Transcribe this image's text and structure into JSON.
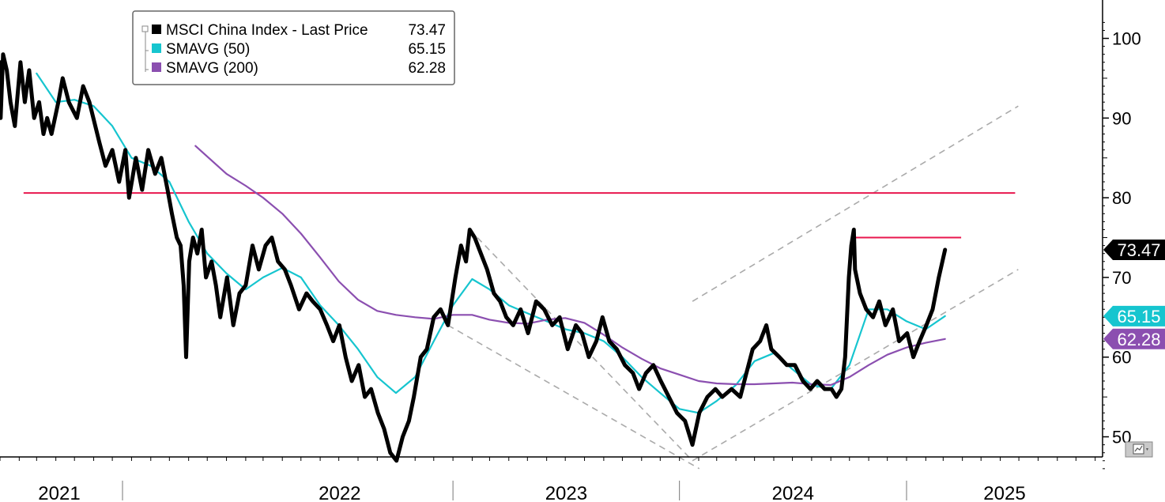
{
  "chart_data": {
    "type": "line",
    "x_unit": "date",
    "y_range": [
      45,
      102
    ],
    "y_ticks": [
      50,
      60,
      70,
      80,
      90,
      100
    ],
    "x_year_labels": [
      "2021",
      "2022",
      "2023",
      "2024",
      "2025"
    ],
    "grid": false,
    "legend_position": "top-left",
    "series": [
      {
        "name": "MSCI China Index - Last Price",
        "legend_value": "73.47",
        "tag": "73.47",
        "color": "#000000",
        "points": [
          [
            "2021-01-01",
            97
          ],
          [
            "2021-01-02",
            90
          ],
          [
            "2021-01-06",
            98
          ],
          [
            "2021-01-12",
            96
          ],
          [
            "2021-01-18",
            92
          ],
          [
            "2021-01-25",
            89
          ],
          [
            "2021-02-03",
            97
          ],
          [
            "2021-02-10",
            92
          ],
          [
            "2021-02-17",
            96
          ],
          [
            "2021-02-25",
            90
          ],
          [
            "2021-03-05",
            92
          ],
          [
            "2021-03-12",
            88
          ],
          [
            "2021-03-18",
            90
          ],
          [
            "2021-03-25",
            88
          ],
          [
            "2021-04-05",
            92
          ],
          [
            "2021-04-12",
            95
          ],
          [
            "2021-04-22",
            92
          ],
          [
            "2021-05-05",
            90
          ],
          [
            "2021-05-15",
            94
          ],
          [
            "2021-05-25",
            92
          ],
          [
            "2021-06-10",
            87
          ],
          [
            "2021-06-20",
            84
          ],
          [
            "2021-07-01",
            86
          ],
          [
            "2021-07-12",
            82
          ],
          [
            "2021-07-22",
            86
          ],
          [
            "2021-07-28",
            80
          ],
          [
            "2021-08-08",
            85
          ],
          [
            "2021-08-18",
            81
          ],
          [
            "2021-08-28",
            86
          ],
          [
            "2021-09-08",
            83
          ],
          [
            "2021-09-18",
            85
          ],
          [
            "2021-09-28",
            81
          ],
          [
            "2021-10-05",
            78
          ],
          [
            "2021-10-13",
            75
          ],
          [
            "2021-10-19",
            74
          ],
          [
            "2021-10-24",
            69
          ],
          [
            "2021-10-28",
            60
          ],
          [
            "2021-11-02",
            72
          ],
          [
            "2021-11-08",
            75
          ],
          [
            "2021-11-15",
            73
          ],
          [
            "2021-11-22",
            76
          ],
          [
            "2021-11-29",
            70
          ],
          [
            "2021-12-08",
            72
          ],
          [
            "2021-12-15",
            69
          ],
          [
            "2021-12-22",
            65
          ],
          [
            "2022-01-02",
            70
          ],
          [
            "2022-01-12",
            64
          ],
          [
            "2022-01-22",
            68
          ],
          [
            "2022-02-01",
            69
          ],
          [
            "2022-02-12",
            74
          ],
          [
            "2022-02-22",
            71
          ],
          [
            "2022-03-05",
            74
          ],
          [
            "2022-03-15",
            75
          ],
          [
            "2022-03-25",
            72
          ],
          [
            "2022-04-05",
            71
          ],
          [
            "2022-04-15",
            69
          ],
          [
            "2022-04-28",
            66
          ],
          [
            "2022-05-10",
            68
          ],
          [
            "2022-05-20",
            67
          ],
          [
            "2022-06-01",
            66
          ],
          [
            "2022-06-12",
            64
          ],
          [
            "2022-06-22",
            62
          ],
          [
            "2022-07-02",
            64
          ],
          [
            "2022-07-12",
            60
          ],
          [
            "2022-07-22",
            57
          ],
          [
            "2022-08-02",
            59
          ],
          [
            "2022-08-12",
            55
          ],
          [
            "2022-08-22",
            56
          ],
          [
            "2022-09-02",
            53
          ],
          [
            "2022-09-12",
            51
          ],
          [
            "2022-09-22",
            48
          ],
          [
            "2022-10-02",
            47
          ],
          [
            "2022-10-12",
            50
          ],
          [
            "2022-10-22",
            52
          ],
          [
            "2022-10-30",
            55
          ],
          [
            "2022-11-10",
            60
          ],
          [
            "2022-11-20",
            61
          ],
          [
            "2022-12-01",
            65
          ],
          [
            "2022-12-12",
            66
          ],
          [
            "2022-12-24",
            64
          ],
          [
            "2023-01-05",
            70
          ],
          [
            "2023-01-14",
            74
          ],
          [
            "2023-01-22",
            72
          ],
          [
            "2023-01-28",
            76
          ],
          [
            "2023-02-05",
            75
          ],
          [
            "2023-02-15",
            73
          ],
          [
            "2023-02-25",
            71
          ],
          [
            "2023-03-08",
            68
          ],
          [
            "2023-03-18",
            67
          ],
          [
            "2023-03-28",
            65
          ],
          [
            "2023-04-08",
            64
          ],
          [
            "2023-04-20",
            66
          ],
          [
            "2023-05-02",
            63
          ],
          [
            "2023-05-15",
            67
          ],
          [
            "2023-05-28",
            66
          ],
          [
            "2023-06-10",
            64
          ],
          [
            "2023-06-22",
            65
          ],
          [
            "2023-07-05",
            61
          ],
          [
            "2023-07-18",
            64
          ],
          [
            "2023-07-28",
            63
          ],
          [
            "2023-08-08",
            60
          ],
          [
            "2023-08-20",
            62
          ],
          [
            "2023-08-30",
            65
          ],
          [
            "2023-09-10",
            62
          ],
          [
            "2023-09-22",
            61
          ],
          [
            "2023-10-05",
            59
          ],
          [
            "2023-10-18",
            58
          ],
          [
            "2023-10-28",
            56
          ],
          [
            "2023-11-08",
            58
          ],
          [
            "2023-11-20",
            59
          ],
          [
            "2023-12-02",
            57
          ],
          [
            "2023-12-15",
            55
          ],
          [
            "2023-12-28",
            53
          ],
          [
            "2024-01-10",
            52
          ],
          [
            "2024-01-22",
            49
          ],
          [
            "2024-02-02",
            53
          ],
          [
            "2024-02-15",
            55
          ],
          [
            "2024-02-28",
            56
          ],
          [
            "2024-03-10",
            55
          ],
          [
            "2024-03-25",
            56
          ],
          [
            "2024-04-08",
            55
          ],
          [
            "2024-04-18",
            58
          ],
          [
            "2024-04-28",
            61
          ],
          [
            "2024-05-10",
            62
          ],
          [
            "2024-05-20",
            64
          ],
          [
            "2024-05-28",
            61
          ],
          [
            "2024-06-10",
            60
          ],
          [
            "2024-06-22",
            59
          ],
          [
            "2024-07-05",
            59
          ],
          [
            "2024-07-18",
            57
          ],
          [
            "2024-07-30",
            56
          ],
          [
            "2024-08-10",
            57
          ],
          [
            "2024-08-22",
            56
          ],
          [
            "2024-09-02",
            56
          ],
          [
            "2024-09-10",
            55
          ],
          [
            "2024-09-18",
            56
          ],
          [
            "2024-09-24",
            60
          ],
          [
            "2024-09-30",
            70
          ],
          [
            "2024-10-04",
            74
          ],
          [
            "2024-10-08",
            76
          ],
          [
            "2024-10-10",
            71
          ],
          [
            "2024-10-18",
            68
          ],
          [
            "2024-10-28",
            66
          ],
          [
            "2024-11-08",
            65
          ],
          [
            "2024-11-18",
            67
          ],
          [
            "2024-11-28",
            64
          ],
          [
            "2024-12-10",
            66
          ],
          [
            "2024-12-20",
            62
          ],
          [
            "2025-01-02",
            63
          ],
          [
            "2025-01-12",
            60
          ],
          [
            "2025-01-22",
            62
          ],
          [
            "2025-02-02",
            64
          ],
          [
            "2025-02-12",
            66
          ],
          [
            "2025-02-22",
            70
          ],
          [
            "2025-03-04",
            73.47
          ]
        ]
      },
      {
        "name": "SMAVG (50)",
        "legend_value": "65.15",
        "tag": "65.15",
        "color": "#16c5cf",
        "points": [
          [
            "2021-03-01",
            95.6
          ],
          [
            "2021-04-01",
            92
          ],
          [
            "2021-05-01",
            92.3
          ],
          [
            "2021-06-01",
            91.5
          ],
          [
            "2021-07-01",
            89
          ],
          [
            "2021-08-01",
            85
          ],
          [
            "2021-09-01",
            84
          ],
          [
            "2021-10-01",
            82
          ],
          [
            "2021-11-01",
            77
          ],
          [
            "2021-12-01",
            73
          ],
          [
            "2022-01-01",
            70.5
          ],
          [
            "2022-02-01",
            68.5
          ],
          [
            "2022-03-01",
            70
          ],
          [
            "2022-04-01",
            71.2
          ],
          [
            "2022-05-01",
            70
          ],
          [
            "2022-06-01",
            66.5
          ],
          [
            "2022-07-01",
            64
          ],
          [
            "2022-08-01",
            61
          ],
          [
            "2022-09-01",
            57.5
          ],
          [
            "2022-10-01",
            55.5
          ],
          [
            "2022-11-01",
            57.5
          ],
          [
            "2022-12-01",
            62
          ],
          [
            "2023-01-01",
            66.5
          ],
          [
            "2023-02-01",
            69.8
          ],
          [
            "2023-03-01",
            68.5
          ],
          [
            "2023-04-01",
            66.5
          ],
          [
            "2023-05-01",
            65.5
          ],
          [
            "2023-06-01",
            64.5
          ],
          [
            "2023-07-01",
            63.5
          ],
          [
            "2023-08-01",
            63
          ],
          [
            "2023-09-01",
            62
          ],
          [
            "2023-10-01",
            60
          ],
          [
            "2023-11-01",
            57.5
          ],
          [
            "2023-12-01",
            55.5
          ],
          [
            "2024-01-01",
            53.5
          ],
          [
            "2024-02-01",
            53
          ],
          [
            "2024-03-01",
            54.5
          ],
          [
            "2024-04-01",
            56.5
          ],
          [
            "2024-05-01",
            59.5
          ],
          [
            "2024-06-01",
            60.5
          ],
          [
            "2024-07-01",
            58.5
          ],
          [
            "2024-08-01",
            56.5
          ],
          [
            "2024-09-01",
            56
          ],
          [
            "2024-10-01",
            59
          ],
          [
            "2024-11-01",
            66
          ],
          [
            "2024-12-01",
            66
          ],
          [
            "2025-01-01",
            64.5
          ],
          [
            "2025-02-01",
            63.5
          ],
          [
            "2025-03-04",
            65.15
          ]
        ]
      },
      {
        "name": "SMAVG (200)",
        "legend_value": "62.28",
        "tag": "62.28",
        "color": "#8b4fb0",
        "points": [
          [
            "2021-11-12",
            86.5
          ],
          [
            "2022-01-01",
            83
          ],
          [
            "2022-02-01",
            81.5
          ],
          [
            "2022-03-01",
            80
          ],
          [
            "2022-04-01",
            78
          ],
          [
            "2022-05-01",
            75.5
          ],
          [
            "2022-06-01",
            72.5
          ],
          [
            "2022-07-01",
            69.5
          ],
          [
            "2022-08-01",
            67.2
          ],
          [
            "2022-09-01",
            65.8
          ],
          [
            "2022-10-01",
            65.3
          ],
          [
            "2022-11-01",
            65
          ],
          [
            "2022-12-01",
            64.8
          ],
          [
            "2023-01-01",
            65.3
          ],
          [
            "2023-02-01",
            65.3
          ],
          [
            "2023-03-01",
            64.7
          ],
          [
            "2023-04-01",
            64.3
          ],
          [
            "2023-05-01",
            64.2
          ],
          [
            "2023-06-01",
            64.7
          ],
          [
            "2023-07-01",
            64.9
          ],
          [
            "2023-08-01",
            64.3
          ],
          [
            "2023-09-01",
            62.8
          ],
          [
            "2023-10-01",
            61.2
          ],
          [
            "2023-11-01",
            59.8
          ],
          [
            "2023-12-01",
            58.6
          ],
          [
            "2024-01-01",
            57.8
          ],
          [
            "2024-02-01",
            57
          ],
          [
            "2024-03-01",
            56.7
          ],
          [
            "2024-04-01",
            56.6
          ],
          [
            "2024-05-01",
            56.6
          ],
          [
            "2024-06-01",
            56.7
          ],
          [
            "2024-07-01",
            56.8
          ],
          [
            "2024-08-01",
            56.6
          ],
          [
            "2024-09-01",
            56.5
          ],
          [
            "2024-10-01",
            57.5
          ],
          [
            "2024-11-01",
            59
          ],
          [
            "2024-12-01",
            60.3
          ],
          [
            "2025-01-01",
            61.2
          ],
          [
            "2025-02-01",
            61.8
          ],
          [
            "2025-03-04",
            62.28
          ]
        ]
      }
    ],
    "reference_lines": [
      {
        "kind": "resistance",
        "color": "#e8174e",
        "y": 80.6,
        "x0": "2021-02-08",
        "x1": "2025-06-25"
      },
      {
        "kind": "resistance",
        "color": "#e8174e",
        "y": 75,
        "x0": "2024-10-08",
        "x1": "2025-03-30"
      }
    ],
    "trend_lines": [
      {
        "color": "#aaaaaa",
        "from": [
          "2023-01-28",
          76
        ],
        "to": [
          "2024-01-22",
          47
        ]
      },
      {
        "color": "#aaaaaa",
        "from": [
          "2022-12-24",
          64
        ],
        "to": [
          "2024-02-02",
          46
        ]
      },
      {
        "color": "#aaaaaa",
        "from": [
          "2024-01-22",
          47
        ],
        "to": [
          "2025-06-30",
          71
        ]
      },
      {
        "color": "#aaaaaa",
        "from": [
          "2024-01-22",
          67
        ],
        "to": [
          "2025-06-30",
          91.5
        ]
      }
    ]
  },
  "icons": {
    "footer_button": "chart-options-icon"
  }
}
